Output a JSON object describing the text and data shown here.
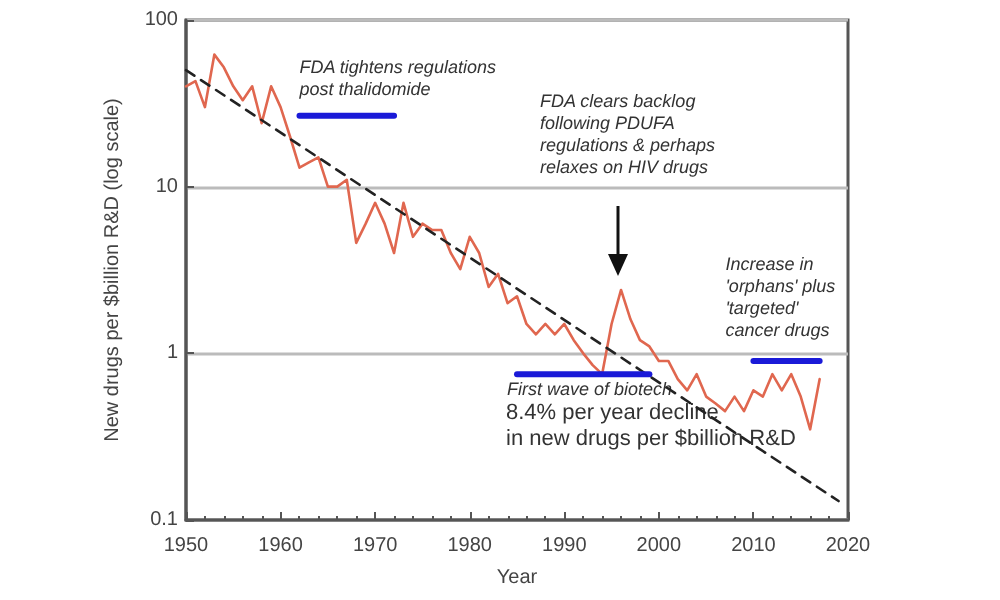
{
  "chart_data": {
    "type": "line",
    "xlabel": "Year",
    "ylabel": "New drugs per $billion R&D (log scale)",
    "xlim": [
      1950,
      2020
    ],
    "xticks": [
      1950,
      1960,
      1970,
      1980,
      1990,
      2000,
      2010,
      2020
    ],
    "ylim": [
      0.1,
      100
    ],
    "yticks": [
      0.1,
      1,
      10,
      100
    ],
    "log": true,
    "grid": "y",
    "marker": "none",
    "series": [
      {
        "color": "#e0674f",
        "line_style": "solid",
        "x": [
          1950,
          1951,
          1952,
          1953,
          1954,
          1955,
          1956,
          1957,
          1958,
          1959,
          1960,
          1961,
          1962,
          1963,
          1964,
          1965,
          1966,
          1967,
          1968,
          1969,
          1970,
          1971,
          1972,
          1973,
          1974,
          1975,
          1976,
          1977,
          1978,
          1979,
          1980,
          1981,
          1982,
          1983,
          1984,
          1985,
          1986,
          1987,
          1988,
          1989,
          1990,
          1991,
          1992,
          1993,
          1994,
          1995,
          1996,
          1997,
          1998,
          1999,
          2000,
          2001,
          2002,
          2003,
          2004,
          2005,
          2006,
          2007,
          2008,
          2009,
          2010,
          2011,
          2012,
          2013,
          2014,
          2015,
          2016,
          2017
        ],
        "values": [
          40,
          43,
          30,
          62,
          52,
          40,
          33,
          40,
          24,
          40,
          30,
          20,
          13,
          14,
          15,
          10,
          10,
          11,
          4.6,
          6,
          8,
          6,
          4,
          8,
          5,
          6,
          5.5,
          5.5,
          4,
          3.2,
          5,
          4,
          2.5,
          3,
          2,
          2.2,
          1.5,
          1.3,
          1.5,
          1.3,
          1.5,
          1.2,
          1,
          0.85,
          0.75,
          1.5,
          2.4,
          1.6,
          1.2,
          1.1,
          0.9,
          0.9,
          0.7,
          0.6,
          0.75,
          0.55,
          0.5,
          0.45,
          0.55,
          0.45,
          0.6,
          0.55,
          0.75,
          0.6,
          0.75,
          0.55,
          0.35,
          0.7
        ]
      },
      {
        "type": "line",
        "color": "#222222",
        "line_style": "dashed",
        "x": [
          1950,
          2019
        ],
        "values": [
          50,
          0.13
        ]
      },
      {
        "type": "line",
        "color": "#1a1ad8",
        "line_style": "solid",
        "x": [
          1962,
          1972
        ],
        "values": [
          26.6,
          26.6
        ]
      },
      {
        "type": "line",
        "color": "#1a1ad8",
        "line_style": "solid",
        "x": [
          1985,
          1999
        ],
        "values": [
          0.75,
          0.75
        ]
      },
      {
        "type": "line",
        "color": "#1a1ad8",
        "line_style": "solid",
        "x": [
          2010,
          2017
        ],
        "values": [
          0.9,
          0.9
        ]
      }
    ],
    "annotations": [
      {
        "text": "FDA tightens regulations\npost thalidomide",
        "x": 1962,
        "y": 26.6
      },
      "FDA clears backlog\nfollowing PDUFA\nregulations & perhaps\nrelaxes on HIV drugs",
      {
        "text": "Increase in\n'orphans' plus\n'targeted'\ncancer drugs",
        "x": 2010,
        "y": 0.9
      },
      {
        "text": "First wave of biotech",
        "x": 1985,
        "y": 0.75
      },
      "8.4% per year decline\nin new drugs per $billion R&D"
    ]
  }
}
